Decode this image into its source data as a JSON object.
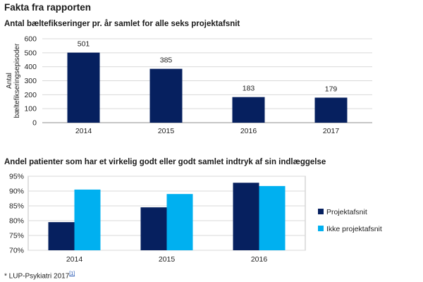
{
  "page": {
    "title": "Fakta fra rapporten"
  },
  "colors": {
    "dark": "#06205f",
    "light": "#00b0f0",
    "grid": "#d9d9d9",
    "axis": "#8c8c8c",
    "frame": "#c0c0c0"
  },
  "chart_data": [
    {
      "type": "bar",
      "title": "Antal bæltefikseringer pr. år samlet for alle seks projektafsnit",
      "ylabel": "Antal bæltefikseringsepisoder",
      "ylabel_lines": [
        "Antal",
        "bæltefikseringsepisoder"
      ],
      "categories": [
        "2014",
        "2015",
        "2016",
        "2017"
      ],
      "values": [
        501,
        385,
        183,
        179
      ],
      "data_labels": [
        "501",
        "385",
        "183",
        "179"
      ],
      "yticks": [
        "0",
        "100",
        "200",
        "300",
        "400",
        "500",
        "600"
      ],
      "ylim": [
        0,
        600
      ],
      "grid": true,
      "legend": "none"
    },
    {
      "type": "bar",
      "title": "Andel patienter som har et virkelig godt eller godt samlet indtryk af sin indlæggelse",
      "categories": [
        "2014",
        "2015",
        "2016"
      ],
      "series": [
        {
          "name": "Projektafsnit",
          "values": [
            79.5,
            84.5,
            92.8
          ]
        },
        {
          "name": "Ikke projektafsnit",
          "values": [
            90.5,
            89.0,
            91.7
          ]
        }
      ],
      "yticks": [
        "70%",
        "75%",
        "80%",
        "85%",
        "90%",
        "95%"
      ],
      "ylim": [
        70,
        95
      ],
      "grid": true,
      "legend": "right"
    }
  ],
  "footnote": {
    "text": "* LUP-Psykiatri 2017",
    "ref": "[1]"
  }
}
